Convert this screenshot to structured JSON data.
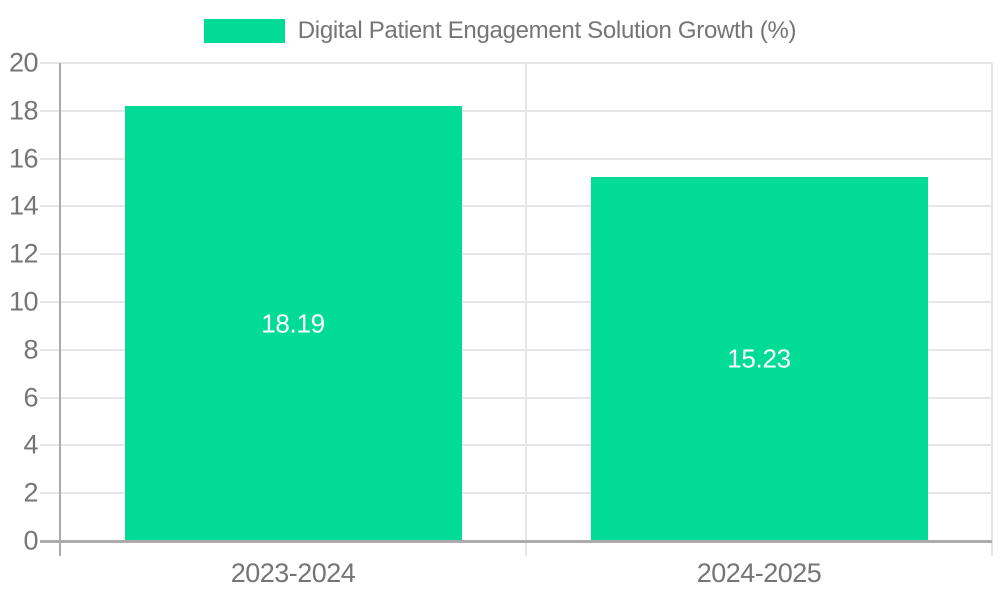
{
  "chart_data": {
    "type": "bar",
    "title": "Digital Patient Engagement Solution Growth (%)",
    "legend": {
      "position": "top",
      "label": "Digital Patient Engagement Solution Growth (%)"
    },
    "categories": [
      "2023-2024",
      "2024-2025"
    ],
    "series": [
      {
        "name": "Digital Patient Engagement Solution Growth (%)",
        "values": [
          18.19,
          15.23
        ]
      }
    ],
    "value_labels": [
      "18.19",
      "15.23"
    ],
    "xlabel": "",
    "ylabel": "",
    "ylim": [
      0,
      20
    ],
    "ytick_step": 2,
    "yticks": [
      0,
      2,
      4,
      6,
      8,
      10,
      12,
      14,
      16,
      18,
      20
    ],
    "grid": "horizontal-gridlines-and-category-separators",
    "colors": {
      "bar": "#00DC96",
      "bar_label_text": "#FFFFFF",
      "axis_text": "#757575",
      "gridline": "#E6E6E6",
      "axis_line": "#ABABAB",
      "background": "#FFFFFF"
    }
  }
}
